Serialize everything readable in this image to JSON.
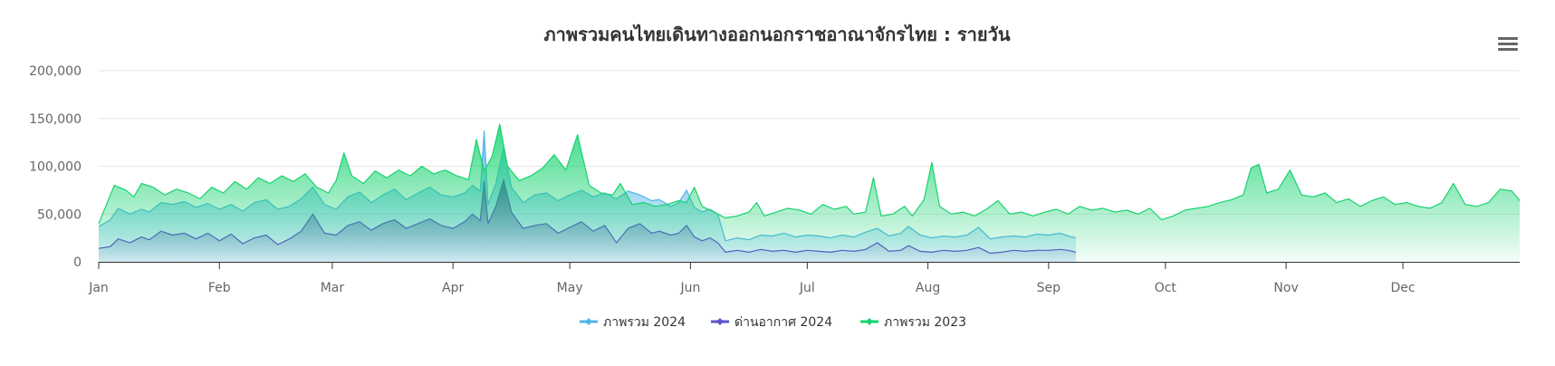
{
  "chart_data": {
    "type": "area",
    "title": "ภาพรวมคนไทยเดินทางออกนอกราชอาณาจักรไทย : รายวัน",
    "xlabel": "",
    "ylabel": "",
    "categories": [
      "Jan",
      "Feb",
      "Mar",
      "Apr",
      "May",
      "Jun",
      "Jul",
      "Aug",
      "Sep",
      "Oct",
      "Nov",
      "Dec"
    ],
    "y_ticks": [
      "0",
      "50,000",
      "100,000",
      "150,000",
      "200,000"
    ],
    "ylim": [
      0,
      200000
    ],
    "grid": true,
    "legend_position": "bottom-center",
    "x_unit": "day of year (Jan 1 = 1)",
    "series": [
      {
        "name": "ภาพรวม 2024",
        "color": "#4fb6e8",
        "points": [
          [
            1,
            37000
          ],
          [
            4,
            44000
          ],
          [
            6,
            56000
          ],
          [
            9,
            50000
          ],
          [
            12,
            55000
          ],
          [
            14,
            52000
          ],
          [
            17,
            62000
          ],
          [
            20,
            60000
          ],
          [
            23,
            63000
          ],
          [
            26,
            57000
          ],
          [
            29,
            61000
          ],
          [
            32,
            55000
          ],
          [
            35,
            60000
          ],
          [
            38,
            53000
          ],
          [
            41,
            62000
          ],
          [
            44,
            65000
          ],
          [
            47,
            55000
          ],
          [
            50,
            58000
          ],
          [
            53,
            66000
          ],
          [
            56,
            78000
          ],
          [
            59,
            60000
          ],
          [
            62,
            55000
          ],
          [
            65,
            68000
          ],
          [
            68,
            73000
          ],
          [
            71,
            62000
          ],
          [
            74,
            70000
          ],
          [
            77,
            76000
          ],
          [
            80,
            65000
          ],
          [
            83,
            72000
          ],
          [
            86,
            78000
          ],
          [
            89,
            70000
          ],
          [
            92,
            68000
          ],
          [
            95,
            72000
          ],
          [
            97,
            80000
          ],
          [
            99,
            74000
          ],
          [
            100,
            137000
          ],
          [
            101,
            60000
          ],
          [
            103,
            82000
          ],
          [
            105,
            120000
          ],
          [
            107,
            78000
          ],
          [
            110,
            62000
          ],
          [
            113,
            70000
          ],
          [
            116,
            72000
          ],
          [
            119,
            64000
          ],
          [
            122,
            70000
          ],
          [
            125,
            75000
          ],
          [
            128,
            68000
          ],
          [
            131,
            72000
          ],
          [
            134,
            66000
          ],
          [
            137,
            74000
          ],
          [
            140,
            70000
          ],
          [
            143,
            64000
          ],
          [
            145,
            65000
          ],
          [
            148,
            58000
          ],
          [
            150,
            62000
          ],
          [
            152,
            75000
          ],
          [
            154,
            57000
          ],
          [
            156,
            52000
          ],
          [
            158,
            55000
          ],
          [
            160,
            50000
          ],
          [
            162,
            22000
          ],
          [
            165,
            25000
          ],
          [
            168,
            23000
          ],
          [
            171,
            28000
          ],
          [
            174,
            27000
          ],
          [
            177,
            30000
          ],
          [
            180,
            26000
          ],
          [
            183,
            28000
          ],
          [
            186,
            27000
          ],
          [
            189,
            25000
          ],
          [
            192,
            28000
          ],
          [
            195,
            26000
          ],
          [
            198,
            31000
          ],
          [
            201,
            35000
          ],
          [
            204,
            27000
          ],
          [
            207,
            30000
          ],
          [
            209,
            37000
          ],
          [
            212,
            28000
          ],
          [
            215,
            25000
          ],
          [
            218,
            27000
          ],
          [
            221,
            26000
          ],
          [
            224,
            28000
          ],
          [
            227,
            36000
          ],
          [
            230,
            24000
          ],
          [
            233,
            26000
          ],
          [
            236,
            27000
          ],
          [
            239,
            26000
          ],
          [
            242,
            29000
          ],
          [
            245,
            28000
          ],
          [
            248,
            30000
          ],
          [
            250,
            27000
          ],
          [
            252,
            25000
          ]
        ]
      },
      {
        "name": "ด่านอากาศ 2024",
        "color": "#5a52c7",
        "points": [
          [
            1,
            14000
          ],
          [
            4,
            16000
          ],
          [
            6,
            24000
          ],
          [
            9,
            20000
          ],
          [
            12,
            26000
          ],
          [
            14,
            23000
          ],
          [
            17,
            32000
          ],
          [
            20,
            28000
          ],
          [
            23,
            30000
          ],
          [
            26,
            24000
          ],
          [
            29,
            30000
          ],
          [
            32,
            22000
          ],
          [
            35,
            29000
          ],
          [
            38,
            19000
          ],
          [
            41,
            25000
          ],
          [
            44,
            28000
          ],
          [
            47,
            18000
          ],
          [
            50,
            24000
          ],
          [
            53,
            32000
          ],
          [
            56,
            50000
          ],
          [
            59,
            30000
          ],
          [
            62,
            28000
          ],
          [
            65,
            38000
          ],
          [
            68,
            42000
          ],
          [
            71,
            33000
          ],
          [
            74,
            40000
          ],
          [
            77,
            44000
          ],
          [
            80,
            35000
          ],
          [
            83,
            40000
          ],
          [
            86,
            45000
          ],
          [
            89,
            38000
          ],
          [
            92,
            35000
          ],
          [
            95,
            42000
          ],
          [
            97,
            50000
          ],
          [
            99,
            43000
          ],
          [
            100,
            85000
          ],
          [
            101,
            40000
          ],
          [
            103,
            58000
          ],
          [
            105,
            86000
          ],
          [
            107,
            52000
          ],
          [
            110,
            35000
          ],
          [
            113,
            38000
          ],
          [
            116,
            40000
          ],
          [
            119,
            30000
          ],
          [
            122,
            36000
          ],
          [
            125,
            42000
          ],
          [
            128,
            32000
          ],
          [
            131,
            38000
          ],
          [
            134,
            20000
          ],
          [
            137,
            35000
          ],
          [
            140,
            40000
          ],
          [
            143,
            30000
          ],
          [
            145,
            32000
          ],
          [
            148,
            28000
          ],
          [
            150,
            30000
          ],
          [
            152,
            38000
          ],
          [
            154,
            26000
          ],
          [
            156,
            22000
          ],
          [
            158,
            25000
          ],
          [
            160,
            20000
          ],
          [
            162,
            10000
          ],
          [
            165,
            12000
          ],
          [
            168,
            10000
          ],
          [
            171,
            13000
          ],
          [
            174,
            11000
          ],
          [
            177,
            12000
          ],
          [
            180,
            10000
          ],
          [
            183,
            12000
          ],
          [
            186,
            11000
          ],
          [
            189,
            10000
          ],
          [
            192,
            12000
          ],
          [
            195,
            11000
          ],
          [
            198,
            13000
          ],
          [
            201,
            20000
          ],
          [
            204,
            11000
          ],
          [
            207,
            12000
          ],
          [
            209,
            17000
          ],
          [
            212,
            11000
          ],
          [
            215,
            10000
          ],
          [
            218,
            12000
          ],
          [
            221,
            11000
          ],
          [
            224,
            12000
          ],
          [
            227,
            15000
          ],
          [
            230,
            9000
          ],
          [
            233,
            10000
          ],
          [
            236,
            12000
          ],
          [
            239,
            11000
          ],
          [
            242,
            12000
          ],
          [
            245,
            12000
          ],
          [
            248,
            13000
          ],
          [
            250,
            12000
          ],
          [
            252,
            10000
          ]
        ]
      },
      {
        "name": "ภาพรวม 2023",
        "color": "#17d36f",
        "points": [
          [
            1,
            40000
          ],
          [
            3,
            60000
          ],
          [
            5,
            80000
          ],
          [
            8,
            75000
          ],
          [
            10,
            68000
          ],
          [
            12,
            82000
          ],
          [
            15,
            78000
          ],
          [
            18,
            70000
          ],
          [
            21,
            76000
          ],
          [
            24,
            72000
          ],
          [
            27,
            66000
          ],
          [
            30,
            78000
          ],
          [
            33,
            72000
          ],
          [
            36,
            84000
          ],
          [
            39,
            76000
          ],
          [
            42,
            88000
          ],
          [
            45,
            82000
          ],
          [
            48,
            90000
          ],
          [
            51,
            84000
          ],
          [
            54,
            92000
          ],
          [
            57,
            78000
          ],
          [
            60,
            72000
          ],
          [
            62,
            85000
          ],
          [
            64,
            114000
          ],
          [
            66,
            90000
          ],
          [
            69,
            82000
          ],
          [
            72,
            95000
          ],
          [
            75,
            88000
          ],
          [
            78,
            96000
          ],
          [
            81,
            90000
          ],
          [
            84,
            100000
          ],
          [
            87,
            92000
          ],
          [
            90,
            96000
          ],
          [
            93,
            90000
          ],
          [
            96,
            86000
          ],
          [
            98,
            128000
          ],
          [
            100,
            95000
          ],
          [
            102,
            110000
          ],
          [
            104,
            144000
          ],
          [
            106,
            100000
          ],
          [
            109,
            85000
          ],
          [
            112,
            90000
          ],
          [
            115,
            98000
          ],
          [
            118,
            112000
          ],
          [
            121,
            96000
          ],
          [
            124,
            133000
          ],
          [
            127,
            80000
          ],
          [
            130,
            72000
          ],
          [
            133,
            70000
          ],
          [
            135,
            82000
          ],
          [
            138,
            60000
          ],
          [
            141,
            62000
          ],
          [
            144,
            58000
          ],
          [
            147,
            60000
          ],
          [
            150,
            64000
          ],
          [
            152,
            62000
          ],
          [
            154,
            78000
          ],
          [
            156,
            58000
          ],
          [
            159,
            52000
          ],
          [
            162,
            46000
          ],
          [
            165,
            48000
          ],
          [
            168,
            52000
          ],
          [
            170,
            62000
          ],
          [
            172,
            48000
          ],
          [
            175,
            52000
          ],
          [
            178,
            56000
          ],
          [
            181,
            54000
          ],
          [
            184,
            50000
          ],
          [
            187,
            60000
          ],
          [
            190,
            55000
          ],
          [
            193,
            58000
          ],
          [
            195,
            50000
          ],
          [
            198,
            52000
          ],
          [
            200,
            88000
          ],
          [
            202,
            48000
          ],
          [
            205,
            50000
          ],
          [
            208,
            58000
          ],
          [
            210,
            48000
          ],
          [
            213,
            65000
          ],
          [
            215,
            104000
          ],
          [
            217,
            58000
          ],
          [
            220,
            50000
          ],
          [
            223,
            52000
          ],
          [
            226,
            48000
          ],
          [
            229,
            55000
          ],
          [
            232,
            64000
          ],
          [
            235,
            50000
          ],
          [
            238,
            52000
          ],
          [
            241,
            48000
          ],
          [
            244,
            52000
          ],
          [
            247,
            55000
          ],
          [
            250,
            50000
          ],
          [
            253,
            58000
          ],
          [
            256,
            54000
          ],
          [
            259,
            56000
          ],
          [
            262,
            52000
          ],
          [
            265,
            54000
          ],
          [
            268,
            50000
          ],
          [
            271,
            56000
          ],
          [
            274,
            44000
          ],
          [
            277,
            48000
          ],
          [
            280,
            54000
          ],
          [
            283,
            56000
          ],
          [
            286,
            58000
          ],
          [
            289,
            62000
          ],
          [
            292,
            65000
          ],
          [
            295,
            70000
          ],
          [
            297,
            98000
          ],
          [
            299,
            102000
          ],
          [
            301,
            72000
          ],
          [
            304,
            76000
          ],
          [
            307,
            96000
          ],
          [
            310,
            70000
          ],
          [
            313,
            68000
          ],
          [
            316,
            72000
          ],
          [
            319,
            62000
          ],
          [
            322,
            66000
          ],
          [
            325,
            58000
          ],
          [
            328,
            64000
          ],
          [
            331,
            68000
          ],
          [
            334,
            60000
          ],
          [
            337,
            62000
          ],
          [
            340,
            58000
          ],
          [
            343,
            56000
          ],
          [
            346,
            62000
          ],
          [
            349,
            82000
          ],
          [
            352,
            60000
          ],
          [
            355,
            58000
          ],
          [
            358,
            62000
          ],
          [
            361,
            76000
          ],
          [
            364,
            74000
          ],
          [
            366,
            64000
          ]
        ]
      }
    ]
  },
  "menu": {
    "icon": "hamburger-menu-icon"
  }
}
